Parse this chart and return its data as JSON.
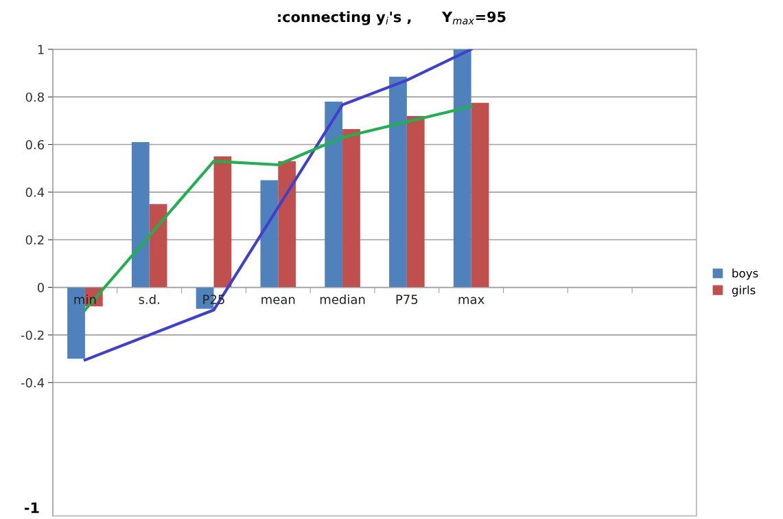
{
  "chart_data": {
    "type": "bar",
    "title": ":connecting y$_{i}$'s ,      Y$_{max}$=95",
    "categories": [
      "min",
      "s.d.",
      "P25",
      "mean",
      "median",
      "P75",
      "max",
      null,
      null,
      null
    ],
    "series": [
      {
        "name": "boys",
        "color": "#4f81bd",
        "values": [
          -0.3,
          0.61,
          -0.09,
          0.45,
          0.78,
          0.885,
          1.0,
          null,
          null,
          null
        ]
      },
      {
        "name": "girls",
        "color": "#c0504d",
        "values": [
          -0.08,
          0.35,
          0.55,
          0.53,
          0.665,
          0.72,
          0.775,
          null,
          null,
          null
        ]
      },
      {
        "type": "line",
        "color": "#4040d0",
        "values": [
          -0.305,
          null,
          -0.095,
          null,
          0.767,
          0.87,
          1.0,
          null,
          null,
          null
        ]
      },
      {
        "type": "line",
        "color": "#20b050",
        "values": [
          -0.095,
          null,
          0.53,
          0.515,
          0.63,
          0.695,
          0.76,
          null,
          null,
          null
        ]
      }
    ],
    "ylim": [
      -0.96,
      1
    ],
    "yticks": [
      1,
      0.8,
      0.6,
      0.4,
      0.2,
      0,
      -0.2,
      -0.4
    ],
    "grid": "y",
    "legend": "right",
    "annotations": [
      "-1"
    ]
  }
}
